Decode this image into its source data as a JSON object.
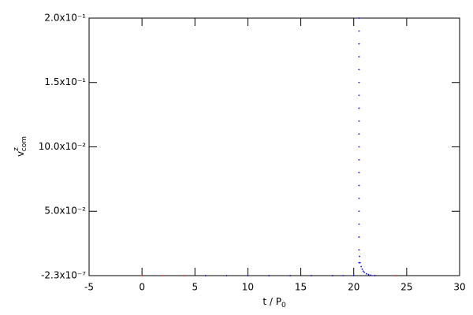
{
  "chart_data": {
    "type": "scatter",
    "xlabel": {
      "text": "t / P",
      "sub": "0"
    },
    "ylabel": {
      "text": "v",
      "sup": "z",
      "sub": "com"
    },
    "xlim": [
      -5,
      30
    ],
    "xticks": [
      -5,
      0,
      5,
      10,
      15,
      20,
      25,
      30
    ],
    "ylim": [
      -2.3e-07,
      0.2
    ],
    "yticks": [
      {
        "value": -2.3e-07,
        "label": "-2.3x10⁻⁷"
      },
      {
        "value": 0.05,
        "label": "5.0x10⁻²"
      },
      {
        "value": 0.1,
        "label": "10.0x10⁻²"
      },
      {
        "value": 0.15,
        "label": "1.5x10⁻¹"
      },
      {
        "value": 0.2,
        "label": "2.0x10⁻¹"
      }
    ],
    "series": [
      {
        "color": "#ff0000",
        "x": [
          0,
          2,
          4,
          6,
          8,
          10,
          12,
          14,
          16,
          18,
          22,
          24
        ],
        "values": [
          0,
          0,
          0,
          0,
          0,
          0,
          0,
          0,
          0,
          0,
          0,
          0
        ]
      },
      {
        "color": "#0000ff",
        "x": [
          6,
          8,
          10,
          12,
          14,
          16,
          18,
          19,
          20,
          20.5,
          20.5,
          20.5,
          20.5,
          20.5,
          20.5,
          20.5,
          20.5,
          20.5,
          20.5,
          20.5,
          20.5,
          20.5,
          20.5,
          20.5,
          20.5,
          20.5,
          20.5,
          20.5,
          20.5,
          20.55,
          20.6,
          20.7,
          20.8,
          20.9,
          21,
          21.2,
          21.4,
          21.6,
          22
        ],
        "values": [
          0,
          0,
          0,
          0,
          0,
          0,
          0,
          0,
          0,
          0.01,
          0.02,
          0.03,
          0.04,
          0.05,
          0.06,
          0.07,
          0.08,
          0.09,
          0.1,
          0.11,
          0.12,
          0.13,
          0.14,
          0.15,
          0.16,
          0.17,
          0.18,
          0.19,
          0.2,
          0.015,
          0.01,
          0.007,
          0.005,
          0.0035,
          0.0025,
          0.0014,
          0.0008,
          0.0004,
          0.0001
        ]
      }
    ]
  }
}
